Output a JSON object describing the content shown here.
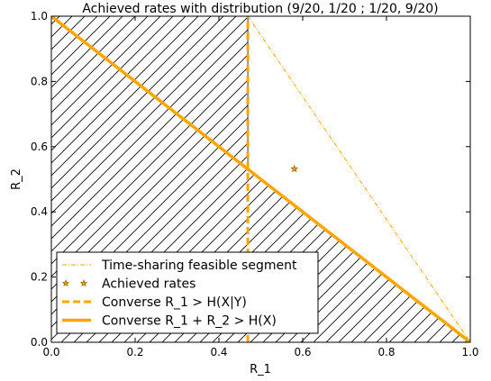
{
  "chart_data": {
    "type": "line",
    "title": "Achieved rates with distribution (9/20, 1/20 ; 1/20, 9/20)",
    "xlabel": "R_1",
    "ylabel": "R_2",
    "xlim": [
      0.0,
      1.0
    ],
    "ylim": [
      0.0,
      1.0
    ],
    "xticks": [
      "0.0",
      "0.2",
      "0.4",
      "0.6",
      "0.8",
      "1.0"
    ],
    "yticks": [
      "0.0",
      "0.2",
      "0.4",
      "0.6",
      "0.8",
      "1.0"
    ],
    "legend_position": "lower-left",
    "colors": {
      "accent": "#FFA500",
      "marker_edge": "#8B5A00",
      "hatch": "#000000"
    },
    "hatched_region": {
      "vertices": [
        [
          0.0,
          0.0
        ],
        [
          0.0,
          1.0
        ],
        [
          0.469,
          1.0
        ],
        [
          0.469,
          0.531
        ],
        [
          1.0,
          0.0
        ]
      ]
    },
    "series": [
      {
        "name": "Time-sharing feasible segment",
        "style": "dashdot-thin",
        "x": [
          0.469,
          1.0
        ],
        "y": [
          1.0,
          0.0
        ]
      },
      {
        "name": "Achieved rates",
        "style": "star-marker",
        "x": [
          0.58
        ],
        "y": [
          0.532
        ]
      },
      {
        "name": "Converse R_1 > H(X|Y)",
        "style": "dashed-thick",
        "x": [
          0.469,
          0.469
        ],
        "y": [
          0.0,
          1.0
        ]
      },
      {
        "name": "Converse R_1 + R_2 > H(X)",
        "style": "solid-thick",
        "x": [
          0.0,
          1.0
        ],
        "y": [
          1.0,
          0.0
        ]
      }
    ]
  }
}
